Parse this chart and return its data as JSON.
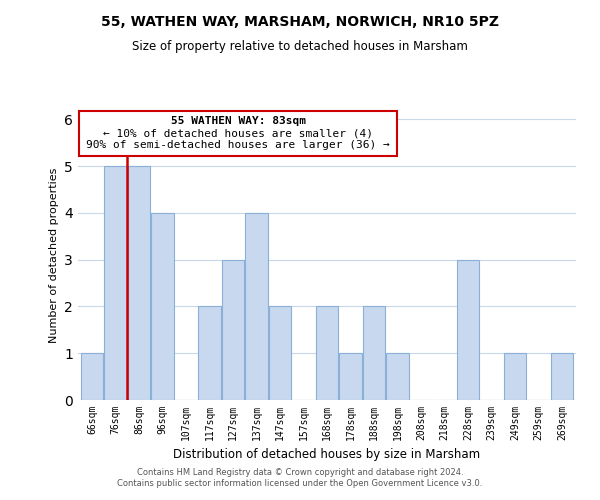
{
  "title": "55, WATHEN WAY, MARSHAM, NORWICH, NR10 5PZ",
  "subtitle": "Size of property relative to detached houses in Marsham",
  "xlabel": "Distribution of detached houses by size in Marsham",
  "ylabel": "Number of detached properties",
  "bin_labels": [
    "66sqm",
    "76sqm",
    "86sqm",
    "96sqm",
    "107sqm",
    "117sqm",
    "127sqm",
    "137sqm",
    "147sqm",
    "157sqm",
    "168sqm",
    "178sqm",
    "188sqm",
    "198sqm",
    "208sqm",
    "218sqm",
    "228sqm",
    "239sqm",
    "249sqm",
    "259sqm",
    "269sqm"
  ],
  "bar_heights": [
    1,
    5,
    5,
    4,
    0,
    2,
    3,
    4,
    2,
    0,
    2,
    1,
    2,
    1,
    0,
    0,
    3,
    0,
    1,
    0,
    1
  ],
  "bar_color": "#c8d9ef",
  "bar_edge_color": "#8ab0d8",
  "ylim": [
    0,
    6.2
  ],
  "yticks": [
    0,
    1,
    2,
    3,
    4,
    5,
    6
  ],
  "annotation_title": "55 WATHEN WAY: 83sqm",
  "annotation_line1": "← 10% of detached houses are smaller (4)",
  "annotation_line2": "90% of semi-detached houses are larger (36) →",
  "annotation_box_edge": "#cc0000",
  "subject_line_color": "#cc0000",
  "footer_line1": "Contains HM Land Registry data © Crown copyright and database right 2024.",
  "footer_line2": "Contains public sector information licensed under the Open Government Licence v3.0.",
  "background_color": "#ffffff",
  "grid_color": "#c8d8e8"
}
